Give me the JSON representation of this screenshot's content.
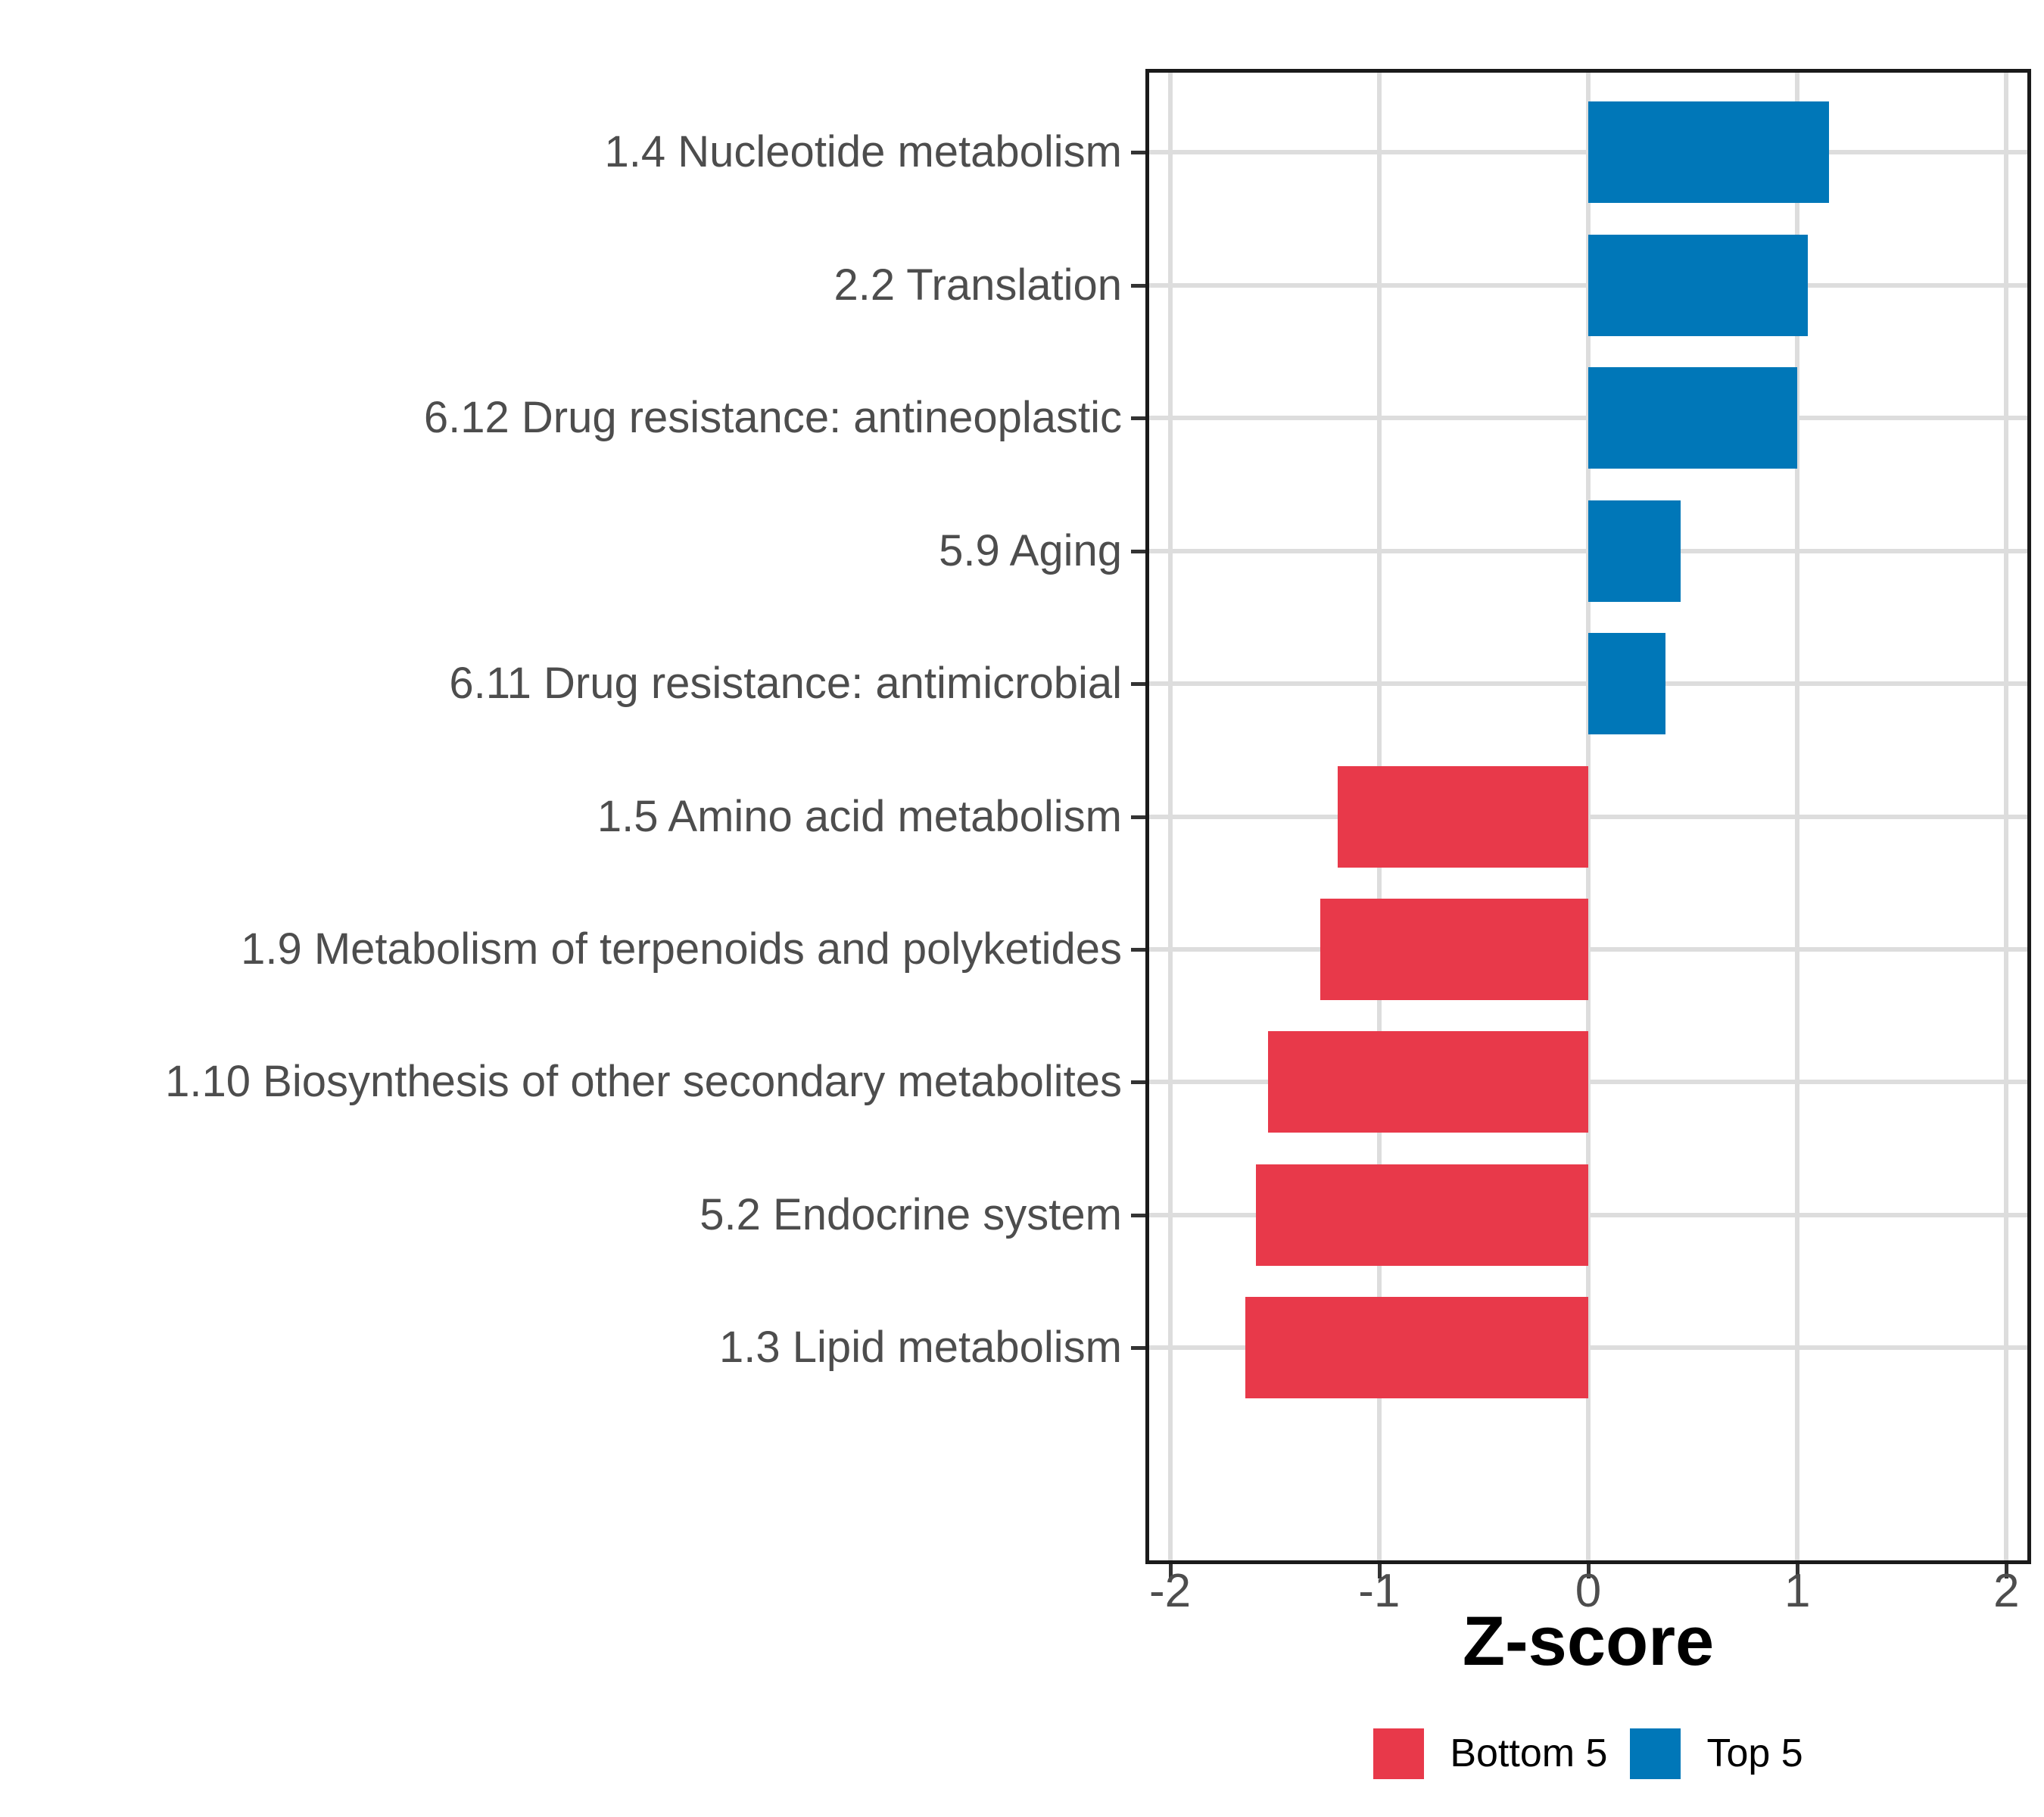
{
  "figure": {
    "background": "#FFFFFF"
  },
  "chart_data": {
    "type": "bar",
    "orientation": "horizontal",
    "title": "",
    "xlabel": "Z-score",
    "ylabel": "",
    "xlim": [
      -2.1,
      2.1
    ],
    "x_ticks": [
      {
        "value": -2,
        "label": "-2"
      },
      {
        "value": -1,
        "label": "-1"
      },
      {
        "value": 0,
        "label": "0"
      },
      {
        "value": 1,
        "label": "1"
      },
      {
        "value": 2,
        "label": "2"
      }
    ],
    "grid": "major-only",
    "categories": [
      "1.4 Nucleotide metabolism",
      "2.2 Translation",
      "6.12 Drug resistance: antineoplastic",
      "5.9 Aging",
      "6.11 Drug resistance: antimicrobial",
      "1.5 Amino acid metabolism",
      "1.9 Metabolism of terpenoids and polyketides",
      "1.10 Biosynthesis of other secondary metabolites",
      "5.2 Endocrine system",
      "1.3 Lipid metabolism"
    ],
    "bars": [
      {
        "label": "1.4 Nucleotide metabolism",
        "value": 1.15,
        "group": "Top 5"
      },
      {
        "label": "2.2 Translation",
        "value": 1.05,
        "group": "Top 5"
      },
      {
        "label": "6.12 Drug resistance: antineoplastic",
        "value": 1.0,
        "group": "Top 5"
      },
      {
        "label": "5.9 Aging",
        "value": 0.44,
        "group": "Top 5"
      },
      {
        "label": "6.11 Drug resistance: antimicrobial",
        "value": 0.37,
        "group": "Top 5"
      },
      {
        "label": "1.5 Amino acid metabolism",
        "value": -1.2,
        "group": "Bottom 5"
      },
      {
        "label": "1.9 Metabolism of terpenoids and polyketides",
        "value": -1.28,
        "group": "Bottom 5"
      },
      {
        "label": "1.10 Biosynthesis of other secondary metabolites",
        "value": -1.53,
        "group": "Bottom 5"
      },
      {
        "label": "5.2 Endocrine system",
        "value": -1.59,
        "group": "Bottom 5"
      },
      {
        "label": "1.3 Lipid metabolism",
        "value": -1.64,
        "group": "Bottom 5"
      }
    ],
    "legend": {
      "position": "bottom",
      "entries": [
        {
          "label": "Bottom 5",
          "color": "#E8394A"
        },
        {
          "label": "Top 5",
          "color": "#0077B8"
        }
      ]
    },
    "colors": {
      "bottom5": "#E8394A",
      "top5": "#0077B8",
      "gridline": "#DDDDDD",
      "panel_border": "#1A1A1A",
      "axis_text": "#4D4D4D",
      "axis_title": "#000000",
      "tick_mark": "#333333"
    }
  }
}
